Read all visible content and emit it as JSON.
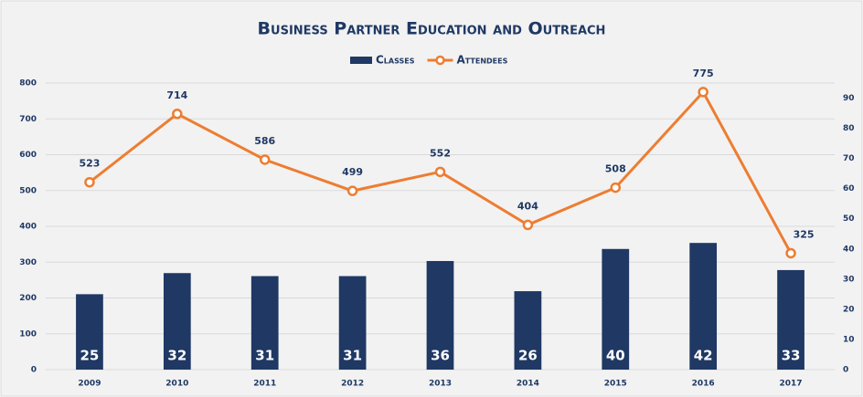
{
  "chart_data": {
    "type": "bar_line",
    "title": "Business Partner Education and Outreach",
    "categories": [
      "2009",
      "2010",
      "2011",
      "2012",
      "2013",
      "2014",
      "2015",
      "2016",
      "2017"
    ],
    "series": [
      {
        "name": "Classes",
        "type": "bar",
        "axis": "y2",
        "color": "#1f3864",
        "values": [
          25,
          32,
          31,
          31,
          36,
          26,
          40,
          42,
          33
        ]
      },
      {
        "name": "Attendees",
        "type": "line",
        "axis": "y",
        "color": "#ed7d31",
        "values": [
          523,
          714,
          586,
          499,
          552,
          404,
          508,
          775,
          325
        ]
      }
    ],
    "ylim": [
      0,
      800
    ],
    "yticks": [
      0,
      100,
      200,
      300,
      400,
      500,
      600,
      700,
      800
    ],
    "y2lim": [
      0,
      95
    ],
    "y2ticks": [
      0,
      10,
      20,
      30,
      40,
      50,
      60,
      70,
      80,
      90
    ],
    "grid": true,
    "legend": "top"
  }
}
